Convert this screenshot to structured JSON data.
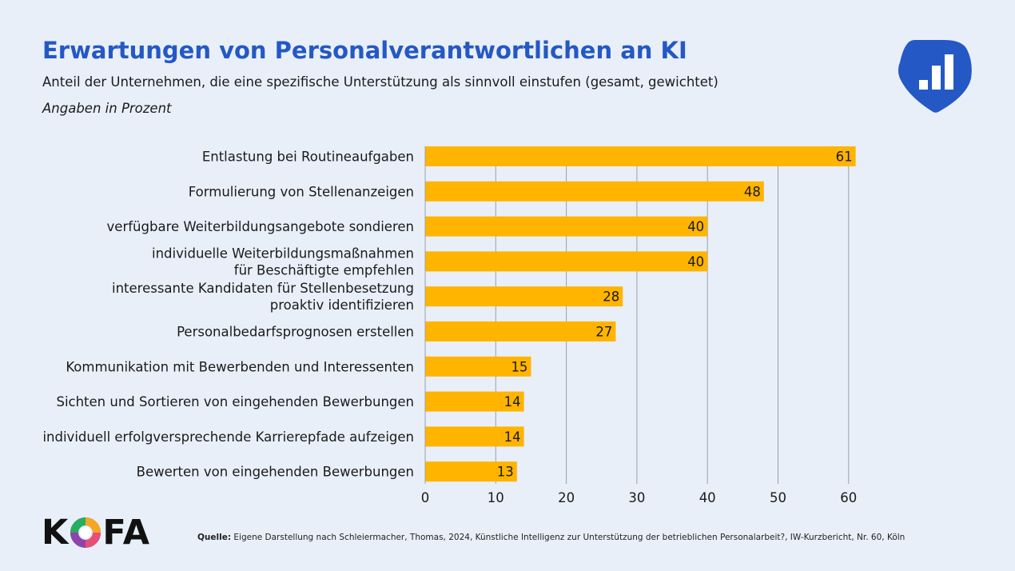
{
  "header": {
    "title": "Erwartungen von Personalverantwortlichen an KI",
    "subtitle": "Anteil der Unternehmen, die eine spezifische Unterstützung als sinnvoll einstufen (gesamt, gewichtet)",
    "unit_note": "Angaben in Prozent"
  },
  "brand": {
    "logo_letters_left": "K",
    "logo_letters_right": "FA",
    "badge_icon": "bar-chart-icon"
  },
  "footer": {
    "source_label": "Quelle:",
    "source_text": "Eigene Darstellung nach Schleiermacher, Thomas, 2024, Künstliche Intelligenz zur Unterstützung der betrieblichen Personalarbeit?, IW-Kurzbericht, Nr. 60, Köln"
  },
  "colors": {
    "background": "#e9eff9",
    "title": "#2458c5",
    "bar": "#ffb400",
    "badge": "#2458c5",
    "grid": "#9aa0ab"
  },
  "chart_data": {
    "type": "bar",
    "orientation": "horizontal",
    "categories": [
      [
        "Entlastung bei Routineaufgaben"
      ],
      [
        "Formulierung von Stellenanzeigen"
      ],
      [
        "verfügbare Weiterbildungsangebote sondieren"
      ],
      [
        "individuelle Weiterbildungsmaßnahmen",
        "für Beschäftigte empfehlen"
      ],
      [
        "interessante Kandidaten für Stellenbesetzung",
        "proaktiv identifizieren"
      ],
      [
        "Personalbedarfsprognosen erstellen"
      ],
      [
        "Kommunikation mit Bewerbenden und Interessenten"
      ],
      [
        "Sichten und Sortieren von eingehenden Bewerbungen"
      ],
      [
        "individuell erfolgversprechende Karrierepfade aufzeigen"
      ],
      [
        "Bewerten von eingehenden Bewerbungen"
      ]
    ],
    "values": [
      61,
      48,
      40,
      40,
      28,
      27,
      15,
      14,
      14,
      13
    ],
    "xlim": [
      0,
      60
    ],
    "xticks": [
      0,
      10,
      20,
      30,
      40,
      50,
      60
    ],
    "grid": "vertical",
    "data_labels": true
  }
}
